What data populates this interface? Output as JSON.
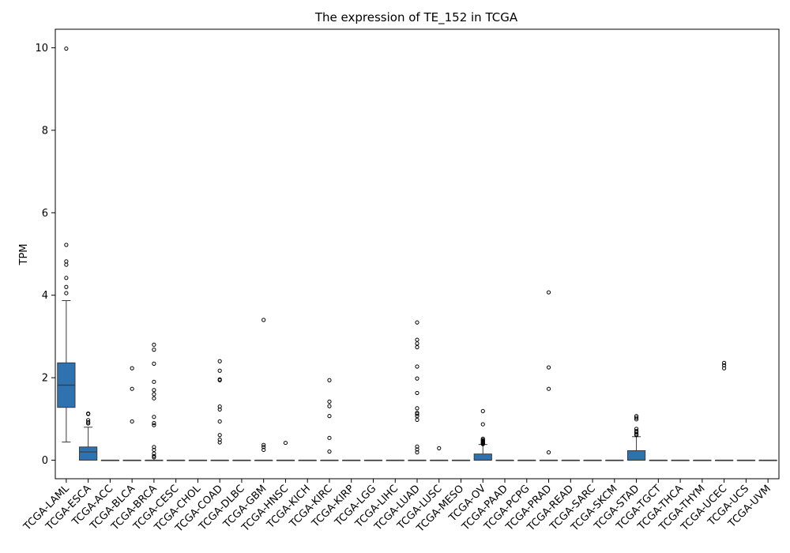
{
  "chart_data": {
    "type": "box",
    "title": "The expression of TE_152 in TCGA",
    "xlabel": "",
    "ylabel": "TPM",
    "ylim": [
      -0.45,
      10.45
    ],
    "yticks": [
      0,
      2,
      4,
      6,
      8,
      10
    ],
    "grid": false,
    "box_color": "#2e72b0",
    "categories": [
      "TCGA-LAML",
      "TCGA-ESCA",
      "TCGA-ACC",
      "TCGA-BLCA",
      "TCGA-BRCA",
      "TCGA-CESC",
      "TCGA-CHOL",
      "TCGA-COAD",
      "TCGA-DLBC",
      "TCGA-GBM",
      "TCGA-HNSC",
      "TCGA-KICH",
      "TCGA-KIRC",
      "TCGA-KIRP",
      "TCGA-LGG",
      "TCGA-LIHC",
      "TCGA-LUAD",
      "TCGA-LUSC",
      "TCGA-MESO",
      "TCGA-OV",
      "TCGA-PAAD",
      "TCGA-PCPG",
      "TCGA-PRAD",
      "TCGA-READ",
      "TCGA-SARC",
      "TCGA-SKCM",
      "TCGA-STAD",
      "TCGA-TGCT",
      "TCGA-THCA",
      "TCGA-THYM",
      "TCGA-UCEC",
      "TCGA-UCS",
      "TCGA-UVM"
    ],
    "boxes": [
      {
        "whislo": 0.44,
        "q1": 1.28,
        "med": 1.82,
        "q3": 2.36,
        "whishi": 3.87,
        "fliers": [
          9.98,
          5.22,
          4.82,
          4.74,
          4.42,
          4.2,
          4.05
        ]
      },
      {
        "whislo": 0.0,
        "q1": 0.0,
        "med": 0.2,
        "q3": 0.32,
        "whishi": 0.8,
        "fliers": [
          1.13,
          1.12,
          0.97,
          0.92,
          0.89
        ]
      },
      {
        "whislo": 0,
        "q1": 0,
        "med": 0,
        "q3": 0,
        "whishi": 0,
        "fliers": []
      },
      {
        "whislo": 0,
        "q1": 0,
        "med": 0,
        "q3": 0,
        "whishi": 0,
        "fliers": [
          2.23,
          1.73,
          0.94
        ]
      },
      {
        "whislo": 0,
        "q1": 0,
        "med": 0,
        "q3": 0,
        "whishi": 0,
        "fliers": [
          2.8,
          2.68,
          2.34,
          1.9,
          1.7,
          1.6,
          1.5,
          1.05,
          0.9,
          0.85,
          0.32,
          0.25,
          0.16,
          0.1,
          0.07
        ]
      },
      {
        "whislo": 0,
        "q1": 0,
        "med": 0,
        "q3": 0,
        "whishi": 0,
        "fliers": []
      },
      {
        "whislo": 0,
        "q1": 0,
        "med": 0,
        "q3": 0,
        "whishi": 0,
        "fliers": []
      },
      {
        "whislo": 0,
        "q1": 0,
        "med": 0,
        "q3": 0,
        "whishi": 0,
        "fliers": [
          2.4,
          2.17,
          1.96,
          1.94,
          1.3,
          1.23,
          0.94,
          0.61,
          0.5,
          0.43
        ]
      },
      {
        "whislo": 0,
        "q1": 0,
        "med": 0,
        "q3": 0,
        "whishi": 0,
        "fliers": []
      },
      {
        "whislo": 0,
        "q1": 0,
        "med": 0,
        "q3": 0,
        "whishi": 0,
        "fliers": [
          3.4,
          0.37,
          0.32,
          0.25
        ]
      },
      {
        "whislo": 0,
        "q1": 0,
        "med": 0,
        "q3": 0,
        "whishi": 0,
        "fliers": [
          0.42
        ]
      },
      {
        "whislo": 0,
        "q1": 0,
        "med": 0,
        "q3": 0,
        "whishi": 0,
        "fliers": []
      },
      {
        "whislo": 0,
        "q1": 0,
        "med": 0,
        "q3": 0,
        "whishi": 0,
        "fliers": [
          1.94,
          1.42,
          1.31,
          1.07,
          0.54,
          0.21
        ]
      },
      {
        "whislo": 0,
        "q1": 0,
        "med": 0,
        "q3": 0,
        "whishi": 0,
        "fliers": []
      },
      {
        "whislo": 0,
        "q1": 0,
        "med": 0,
        "q3": 0,
        "whishi": 0,
        "fliers": []
      },
      {
        "whislo": 0,
        "q1": 0,
        "med": 0,
        "q3": 0,
        "whishi": 0,
        "fliers": []
      },
      {
        "whislo": 0,
        "q1": 0,
        "med": 0,
        "q3": 0,
        "whishi": 0,
        "fliers": [
          3.34,
          2.92,
          2.83,
          2.74,
          2.27,
          1.98,
          1.63,
          1.26,
          1.15,
          1.12,
          1.07,
          0.98,
          0.33,
          0.26,
          0.19
        ]
      },
      {
        "whislo": 0,
        "q1": 0,
        "med": 0,
        "q3": 0,
        "whishi": 0,
        "fliers": [
          0.29
        ]
      },
      {
        "whislo": 0,
        "q1": 0,
        "med": 0,
        "q3": 0,
        "whishi": 0,
        "fliers": []
      },
      {
        "whislo": 0.0,
        "q1": 0.0,
        "med": 0.0,
        "q3": 0.15,
        "whishi": 0.38,
        "fliers": [
          1.19,
          0.87,
          0.52,
          0.49,
          0.47,
          0.45,
          0.43,
          0.41,
          0.4,
          0.39
        ]
      },
      {
        "whislo": 0,
        "q1": 0,
        "med": 0,
        "q3": 0,
        "whishi": 0,
        "fliers": []
      },
      {
        "whislo": 0,
        "q1": 0,
        "med": 0,
        "q3": 0,
        "whishi": 0,
        "fliers": []
      },
      {
        "whislo": 0,
        "q1": 0,
        "med": 0,
        "q3": 0,
        "whishi": 0,
        "fliers": [
          4.07,
          2.25,
          1.73,
          0.19
        ]
      },
      {
        "whislo": 0,
        "q1": 0,
        "med": 0,
        "q3": 0,
        "whishi": 0,
        "fliers": []
      },
      {
        "whislo": 0,
        "q1": 0,
        "med": 0,
        "q3": 0,
        "whishi": 0,
        "fliers": []
      },
      {
        "whislo": 0,
        "q1": 0,
        "med": 0,
        "q3": 0,
        "whishi": 0,
        "fliers": []
      },
      {
        "whislo": 0.0,
        "q1": 0.0,
        "med": 0.0,
        "q3": 0.23,
        "whishi": 0.57,
        "fliers": [
          1.07,
          1.03,
          0.99,
          0.76,
          0.71,
          0.67,
          0.63,
          0.61
        ]
      },
      {
        "whislo": 0,
        "q1": 0,
        "med": 0,
        "q3": 0,
        "whishi": 0,
        "fliers": []
      },
      {
        "whislo": 0,
        "q1": 0,
        "med": 0,
        "q3": 0,
        "whishi": 0,
        "fliers": []
      },
      {
        "whislo": 0,
        "q1": 0,
        "med": 0,
        "q3": 0,
        "whishi": 0,
        "fliers": []
      },
      {
        "whislo": 0,
        "q1": 0,
        "med": 0,
        "q3": 0,
        "whishi": 0,
        "fliers": [
          2.36,
          2.3,
          2.23
        ]
      },
      {
        "whislo": 0,
        "q1": 0,
        "med": 0,
        "q3": 0,
        "whishi": 0,
        "fliers": []
      },
      {
        "whislo": 0,
        "q1": 0,
        "med": 0,
        "q3": 0,
        "whishi": 0,
        "fliers": []
      }
    ]
  }
}
